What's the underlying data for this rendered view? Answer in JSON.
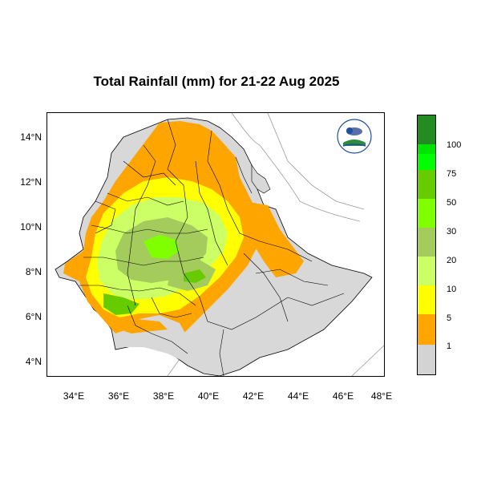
{
  "title": "Total Rainfall (mm) for 21-22 Aug 2025",
  "y_ticks": [
    "14°N",
    "12°N",
    "10°N",
    "8°N",
    "6°N",
    "4°N"
  ],
  "x_ticks": [
    "34°E",
    "36°E",
    "38°E",
    "40°E",
    "42°E",
    "44°E",
    "46°E",
    "48°E"
  ],
  "legend": {
    "labels": [
      "1",
      "5",
      "10",
      "20",
      "30",
      "50",
      "75",
      "100"
    ],
    "colors": [
      "#d3d3d3",
      "#ffa500",
      "#ffff00",
      "#ccff66",
      "#a3cc5c",
      "#80ff00",
      "#66cc00",
      "#00ff00",
      "#00e400",
      "#228b22"
    ]
  },
  "colors": {
    "land_base": "#d8d8d8",
    "border": "#000000",
    "coast": "#9a9a9a"
  },
  "logo_icon": "nma-ethiopia-logo"
}
